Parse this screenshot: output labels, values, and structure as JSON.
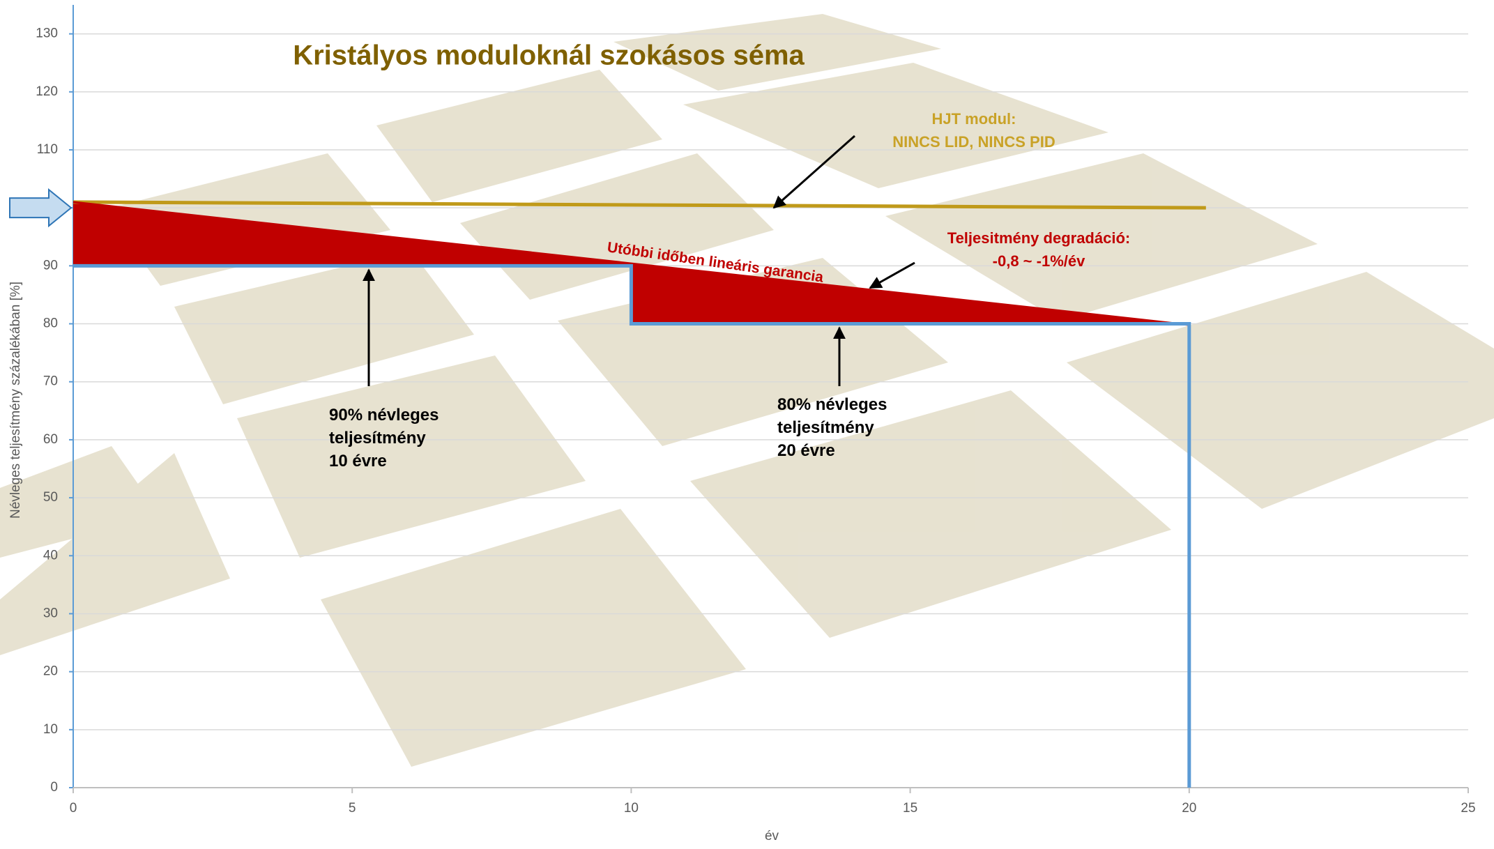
{
  "chart_data": {
    "type": "line",
    "title": "Kristályos moduloknál szokásos séma",
    "x_label": "év",
    "y_label": "Névleges teljesítmény százalékában [%]",
    "xlim": [
      0,
      25
    ],
    "ylim": [
      0,
      135
    ],
    "xticks": [
      0,
      5,
      10,
      15,
      20,
      25
    ],
    "yticks": [
      0,
      10,
      20,
      30,
      40,
      50,
      60,
      70,
      80,
      90,
      100,
      110,
      120,
      130
    ],
    "grid": true,
    "series": [
      {
        "color": "#c09a1a",
        "x": [
          0,
          20.3
        ],
        "values": [
          101,
          100
        ]
      },
      {
        "color": "#c00000",
        "x": [
          0,
          20
        ],
        "values": [
          101,
          79.8
        ]
      },
      {
        "color": "#5b9bd5",
        "x": [
          0,
          10,
          10,
          20,
          20
        ],
        "values": [
          90,
          90,
          80,
          80,
          0
        ]
      }
    ],
    "annotations": [
      {
        "lines": [
          "HJT modul:",
          "NINCS LID, NINCS PID"
        ],
        "color": "#c9a227"
      },
      {
        "lines": [
          "Teljesitmény degradáció:",
          "-0,8 ~ -1%/év"
        ],
        "color": "#c00000"
      },
      {
        "lines": [
          "Utóbbi időben lineáris garancia"
        ],
        "color": "#c00000"
      },
      {
        "lines": [
          "90% névleges",
          "teljesítmény",
          "10 évre"
        ],
        "color": "#000000"
      },
      {
        "lines": [
          "80% névleges",
          "teljesítmény",
          "20 évre"
        ],
        "color": "#000000"
      }
    ]
  }
}
